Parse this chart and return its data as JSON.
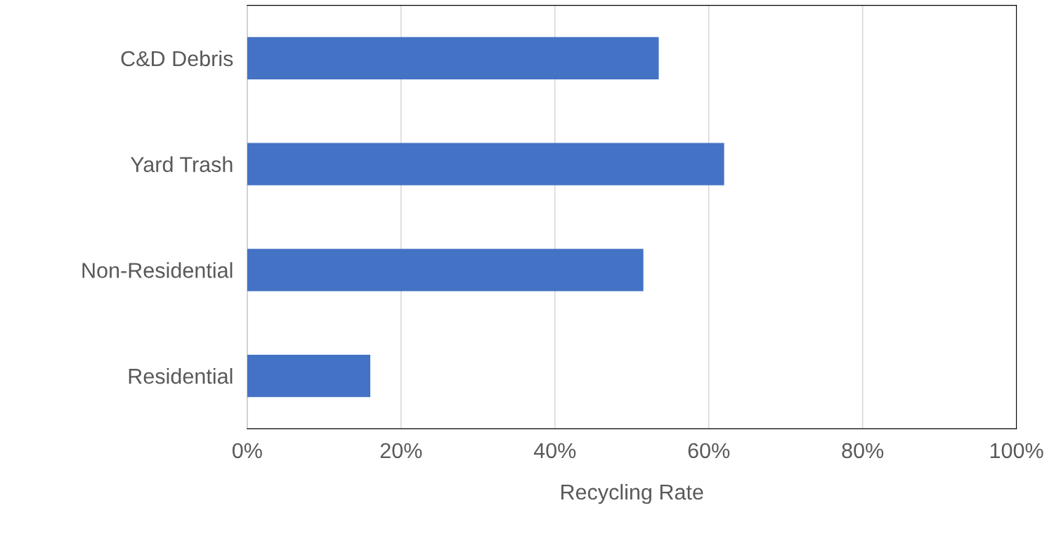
{
  "chart_data": {
    "type": "bar",
    "orientation": "horizontal",
    "xlabel": "Recycling Rate",
    "categories": [
      "C&D Debris",
      "Yard Trash",
      "Non-Residential",
      "Residential"
    ],
    "values": [
      53.5,
      62,
      51.5,
      16
    ],
    "color": "#4472c4",
    "xlim": [
      0,
      100
    ],
    "xticks": [
      {
        "value": 0,
        "label": "0%"
      },
      {
        "value": 20,
        "label": "20%"
      },
      {
        "value": 40,
        "label": "40%"
      },
      {
        "value": 60,
        "label": "60%"
      },
      {
        "value": 80,
        "label": "80%"
      },
      {
        "value": 100,
        "label": "100%"
      }
    ],
    "grid": "x"
  }
}
